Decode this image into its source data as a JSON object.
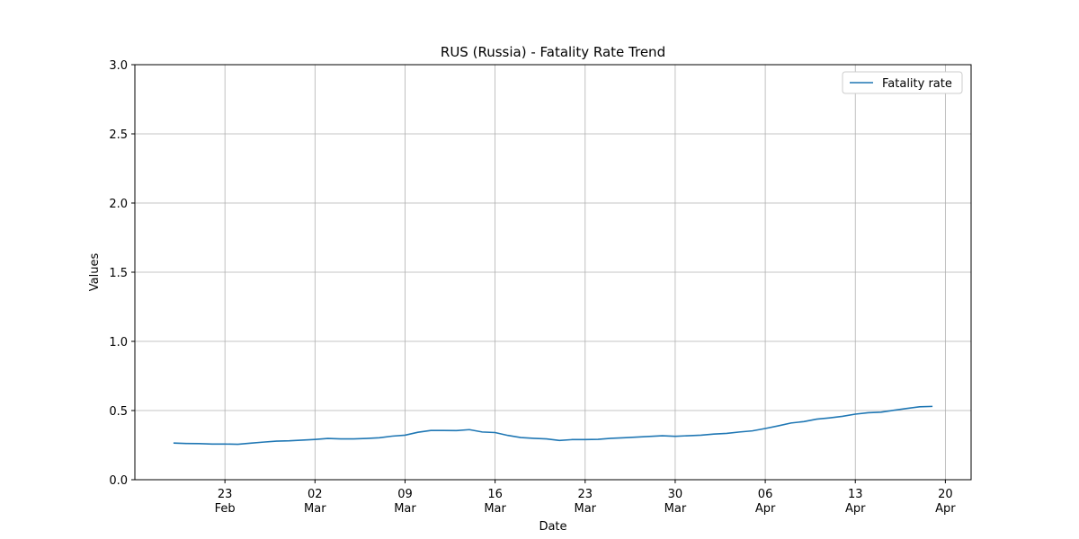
{
  "chart_data": {
    "type": "line",
    "title": "RUS (Russia) - Fatality Rate Trend",
    "xlabel": "Date",
    "ylabel": "Values",
    "x": [
      "02-19",
      "02-20",
      "02-21",
      "02-22",
      "02-23",
      "02-24",
      "02-25",
      "02-26",
      "02-27",
      "02-28",
      "03-01",
      "03-02",
      "03-03",
      "03-04",
      "03-05",
      "03-06",
      "03-07",
      "03-08",
      "03-09",
      "03-10",
      "03-11",
      "03-12",
      "03-13",
      "03-14",
      "03-15",
      "03-16",
      "03-17",
      "03-18",
      "03-19",
      "03-20",
      "03-21",
      "03-22",
      "03-23",
      "03-24",
      "03-25",
      "03-26",
      "03-27",
      "03-28",
      "03-29",
      "03-30",
      "03-31",
      "04-01",
      "04-02",
      "04-03",
      "04-04",
      "04-05",
      "04-06",
      "04-07",
      "04-08",
      "04-09",
      "04-10",
      "04-11",
      "04-12",
      "04-13",
      "04-14",
      "04-15",
      "04-16",
      "04-17",
      "04-18",
      "04-19"
    ],
    "series": [
      {
        "name": "Fatality rate",
        "color": "#1f77b4",
        "values": [
          0.265,
          0.262,
          0.261,
          0.258,
          0.258,
          0.256,
          0.264,
          0.272,
          0.279,
          0.281,
          0.286,
          0.291,
          0.298,
          0.295,
          0.295,
          0.298,
          0.303,
          0.315,
          0.322,
          0.343,
          0.356,
          0.356,
          0.355,
          0.362,
          0.345,
          0.341,
          0.32,
          0.305,
          0.299,
          0.295,
          0.284,
          0.29,
          0.29,
          0.292,
          0.299,
          0.303,
          0.308,
          0.313,
          0.318,
          0.314,
          0.318,
          0.322,
          0.33,
          0.335,
          0.345,
          0.353,
          0.37,
          0.389,
          0.41,
          0.42,
          0.438,
          0.447,
          0.458,
          0.474,
          0.484,
          0.488,
          0.502,
          0.515,
          0.527,
          0.53
        ]
      }
    ],
    "xlim": [
      "02-16",
      "04-22"
    ],
    "xticks": [
      {
        "value": "02-23",
        "label": [
          "23",
          "Feb"
        ]
      },
      {
        "value": "03-02",
        "label": [
          "02",
          "Mar"
        ]
      },
      {
        "value": "03-09",
        "label": [
          "09",
          "Mar"
        ]
      },
      {
        "value": "03-16",
        "label": [
          "16",
          "Mar"
        ]
      },
      {
        "value": "03-23",
        "label": [
          "23",
          "Mar"
        ]
      },
      {
        "value": "03-30",
        "label": [
          "30",
          "Mar"
        ]
      },
      {
        "value": "04-06",
        "label": [
          "06",
          "Apr"
        ]
      },
      {
        "value": "04-13",
        "label": [
          "13",
          "Apr"
        ]
      },
      {
        "value": "04-20",
        "label": [
          "20",
          "Apr"
        ]
      }
    ],
    "ylim": [
      0,
      3
    ],
    "yticks": [
      {
        "value": 0,
        "label": "0.0"
      },
      {
        "value": 0.5,
        "label": "0.5"
      },
      {
        "value": 1,
        "label": "1.0"
      },
      {
        "value": 1.5,
        "label": "1.5"
      },
      {
        "value": 2,
        "label": "2.0"
      },
      {
        "value": 2.5,
        "label": "2.5"
      },
      {
        "value": 3,
        "label": "3.0"
      }
    ],
    "grid": true,
    "legend": "upper right"
  }
}
